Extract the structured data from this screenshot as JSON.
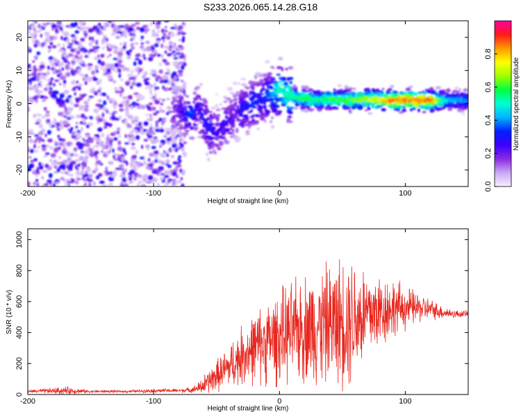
{
  "title": "S233.2026.065.14.28.G18",
  "chart_data": [
    {
      "type": "heatmap",
      "name": "spectrogram",
      "xlabel": "Height of straight line (km)",
      "ylabel": "Frequency (Hz)",
      "xlim": [
        -200,
        150
      ],
      "ylim": [
        -25,
        25
      ],
      "x_ticks": [
        -200,
        -100,
        0,
        100
      ],
      "y_ticks": [
        -20,
        -10,
        0,
        10,
        20
      ],
      "colorbar": {
        "label": "Normalized spectral amplitude",
        "range": [
          0,
          1
        ],
        "ticks": [
          0.0,
          0.2,
          0.4,
          0.6,
          0.8
        ],
        "tick_labels": [
          "0.0",
          "0.2",
          "0.4",
          "0.6",
          "0.8"
        ],
        "colors": [
          "#f6f0ff",
          "#c9a8f5",
          "#8a2be2",
          "#3b00ff",
          "#0020ff",
          "#00b4ff",
          "#00ffd5",
          "#00ff40",
          "#a0ff00",
          "#ffff00",
          "#ff9900",
          "#ff1a1a",
          "#ff00a0"
        ]
      },
      "ridge": {
        "x": [
          -80,
          -75,
          -70,
          -65,
          -60,
          -55,
          -50,
          -45,
          -40,
          -35,
          -30,
          -25,
          -20,
          -15,
          -10,
          -5,
          0,
          5,
          10,
          20,
          30,
          40,
          50,
          60,
          70,
          80,
          90,
          100,
          110,
          120,
          130,
          140,
          150
        ],
        "y": [
          -2,
          -3,
          -4,
          -1,
          -5,
          -8,
          -9,
          -7,
          -5,
          -3,
          -2,
          -1,
          0,
          1,
          2,
          3,
          4,
          3,
          2,
          1.5,
          1,
          1.5,
          1,
          1.2,
          1.3,
          1.1,
          1,
          1,
          1,
          1,
          1,
          1,
          1
        ],
        "amplitude": [
          0.2,
          0.3,
          0.35,
          0.25,
          0.3,
          0.3,
          0.25,
          0.25,
          0.25,
          0.2,
          0.3,
          0.3,
          0.35,
          0.3,
          0.35,
          0.4,
          0.55,
          0.5,
          0.55,
          0.6,
          0.55,
          0.6,
          0.6,
          0.65,
          0.7,
          0.75,
          0.85,
          0.85,
          0.85,
          0.9,
          0.5,
          0.4,
          0.4
        ]
      },
      "noise_region_x": [
        -200,
        -75
      ]
    },
    {
      "type": "line",
      "name": "snr",
      "xlabel": "Height of straight line (km)",
      "ylabel": "SNR (10 * v/v)",
      "xlim": [
        -200,
        150
      ],
      "ylim": [
        0,
        1070
      ],
      "x_ticks": [
        -200,
        -100,
        0,
        100
      ],
      "y_ticks": [
        0,
        200,
        400,
        600,
        800,
        1000
      ],
      "color": "#e8261e",
      "envelope": {
        "x": [
          -200,
          -170,
          -150,
          -120,
          -100,
          -80,
          -70,
          -65,
          -60,
          -50,
          -40,
          -30,
          -20,
          -10,
          0,
          10,
          20,
          30,
          40,
          50,
          55,
          60,
          70,
          80,
          90,
          100,
          110,
          120,
          130,
          140,
          150
        ],
        "base": [
          20,
          25,
          20,
          20,
          25,
          25,
          30,
          40,
          60,
          120,
          180,
          250,
          300,
          340,
          370,
          400,
          430,
          440,
          460,
          480,
          500,
          500,
          520,
          540,
          560,
          560,
          560,
          550,
          530,
          520,
          520
        ],
        "spread": [
          10,
          30,
          10,
          10,
          15,
          15,
          20,
          40,
          80,
          120,
          170,
          230,
          280,
          320,
          360,
          380,
          420,
          450,
          460,
          500,
          540,
          480,
          380,
          300,
          230,
          170,
          120,
          80,
          50,
          30,
          25
        ]
      }
    }
  ]
}
